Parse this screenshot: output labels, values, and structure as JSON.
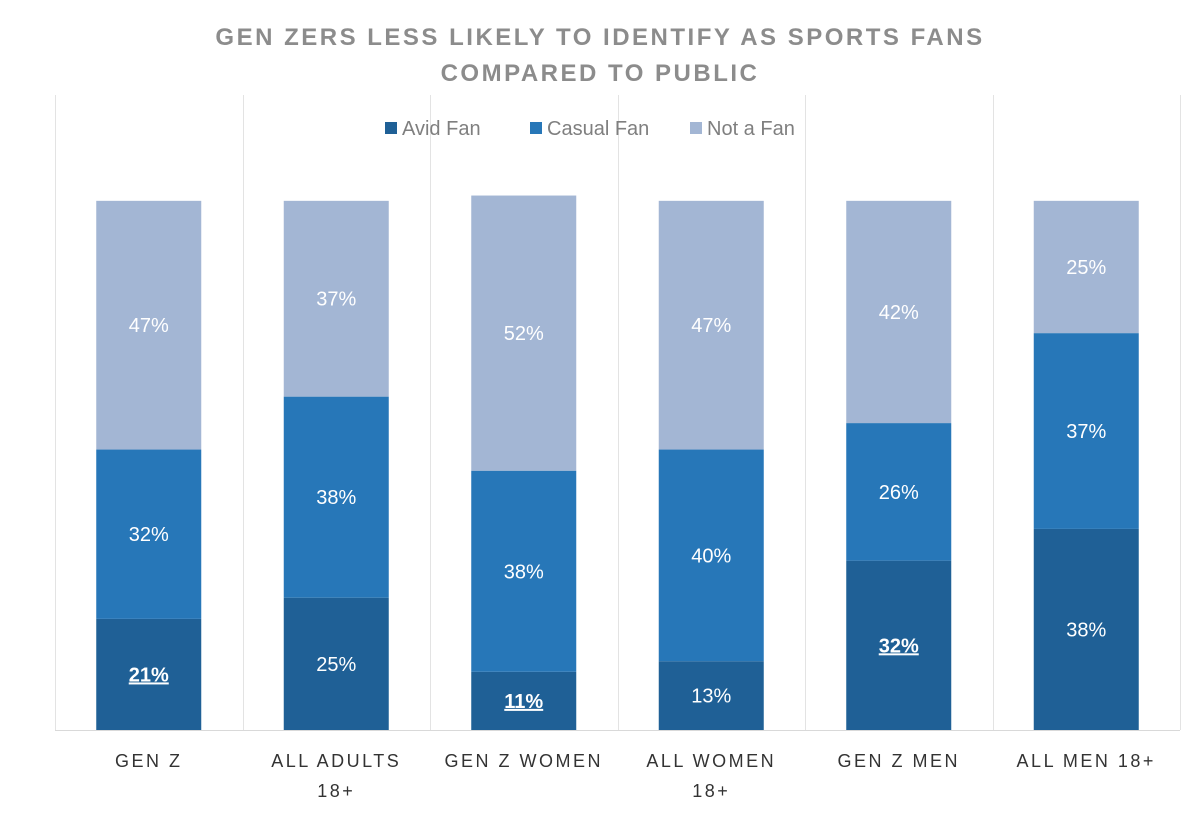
{
  "chart_data": {
    "type": "bar",
    "stacked": true,
    "title": [
      "GEN ZERS LESS LIKELY TO IDENTIFY AS SPORTS FANS",
      "COMPARED TO PUBLIC"
    ],
    "xlabel": "",
    "ylabel": "",
    "ylim": [
      0,
      120
    ],
    "grid": "vertical category separators",
    "legend_position": "top-center",
    "categories": [
      [
        "GEN Z"
      ],
      [
        "ALL ADULTS",
        "18+"
      ],
      [
        "GEN Z WOMEN"
      ],
      [
        "ALL WOMEN",
        "18+"
      ],
      [
        "GEN Z MEN"
      ],
      [
        "ALL MEN 18+"
      ]
    ],
    "series": [
      {
        "name": "Avid Fan",
        "color": "#1f6096",
        "values": [
          21,
          25,
          11,
          13,
          32,
          38
        ],
        "highlighted": [
          true,
          false,
          true,
          false,
          true,
          false
        ]
      },
      {
        "name": "Casual Fan",
        "color": "#2777b8",
        "values": [
          32,
          38,
          38,
          40,
          26,
          37
        ]
      },
      {
        "name": "Not a Fan",
        "color": "#a3b6d4",
        "values": [
          47,
          37,
          52,
          47,
          42,
          25
        ]
      }
    ],
    "value_suffix": "%"
  }
}
